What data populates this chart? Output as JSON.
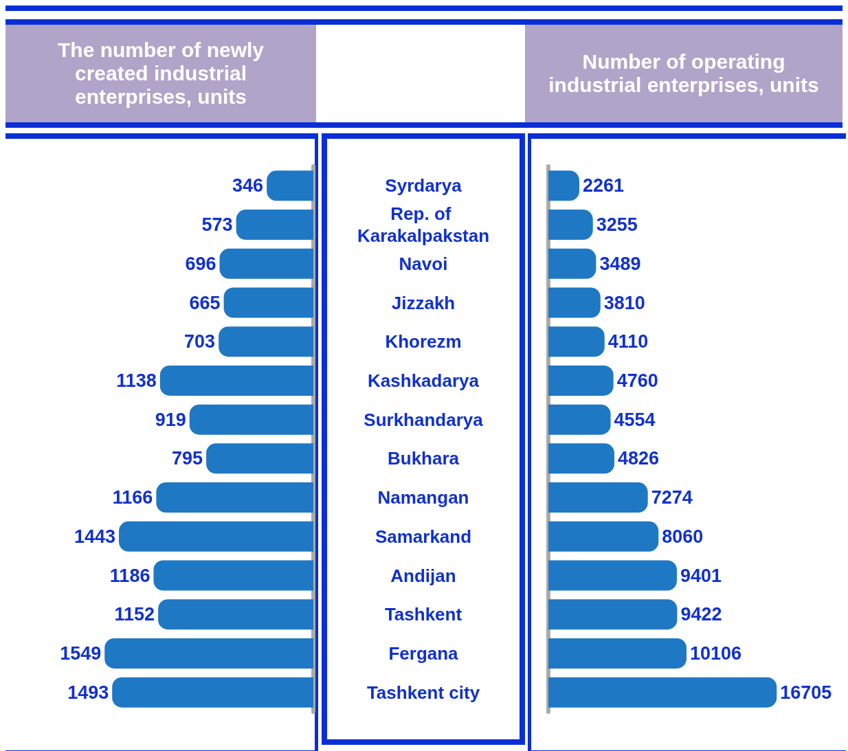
{
  "chart_data": [
    {
      "type": "bar",
      "orientation": "horizontal",
      "title": "The number of newly created industrial enterprises, units",
      "categories": [
        "Syrdarya",
        "Rep. of Karakalpakstan",
        "Navoi",
        "Jizzakh",
        "Khorezm",
        "Kashkadarya",
        "Surkhandarya",
        "Bukhara",
        "Namangan",
        "Samarkand",
        "Andijan",
        "Tashkent",
        "Fergana",
        "Tashkent city"
      ],
      "values": [
        346,
        573,
        696,
        665,
        703,
        1138,
        919,
        795,
        1166,
        1443,
        1186,
        1152,
        1549,
        1493
      ],
      "color": "#1f78c4",
      "data_labels": true,
      "tick_labels": "y"
    },
    {
      "type": "bar",
      "orientation": "horizontal",
      "title": "Number of operating industrial enterprises, units",
      "categories": [
        "Syrdarya",
        "Rep. of Karakalpakstan",
        "Navoi",
        "Jizzakh",
        "Khorezm",
        "Kashkadarya",
        "Surkhandarya",
        "Bukhara",
        "Namangan",
        "Samarkand",
        "Andijan",
        "Tashkent",
        "Fergana",
        "Tashkent city"
      ],
      "values": [
        2261,
        3255,
        3489,
        3810,
        4110,
        4760,
        4554,
        4826,
        7274,
        8060,
        9401,
        9422,
        10106,
        16705
      ],
      "color": "#1f78c4",
      "data_labels": true,
      "tick_labels": false
    }
  ]
}
